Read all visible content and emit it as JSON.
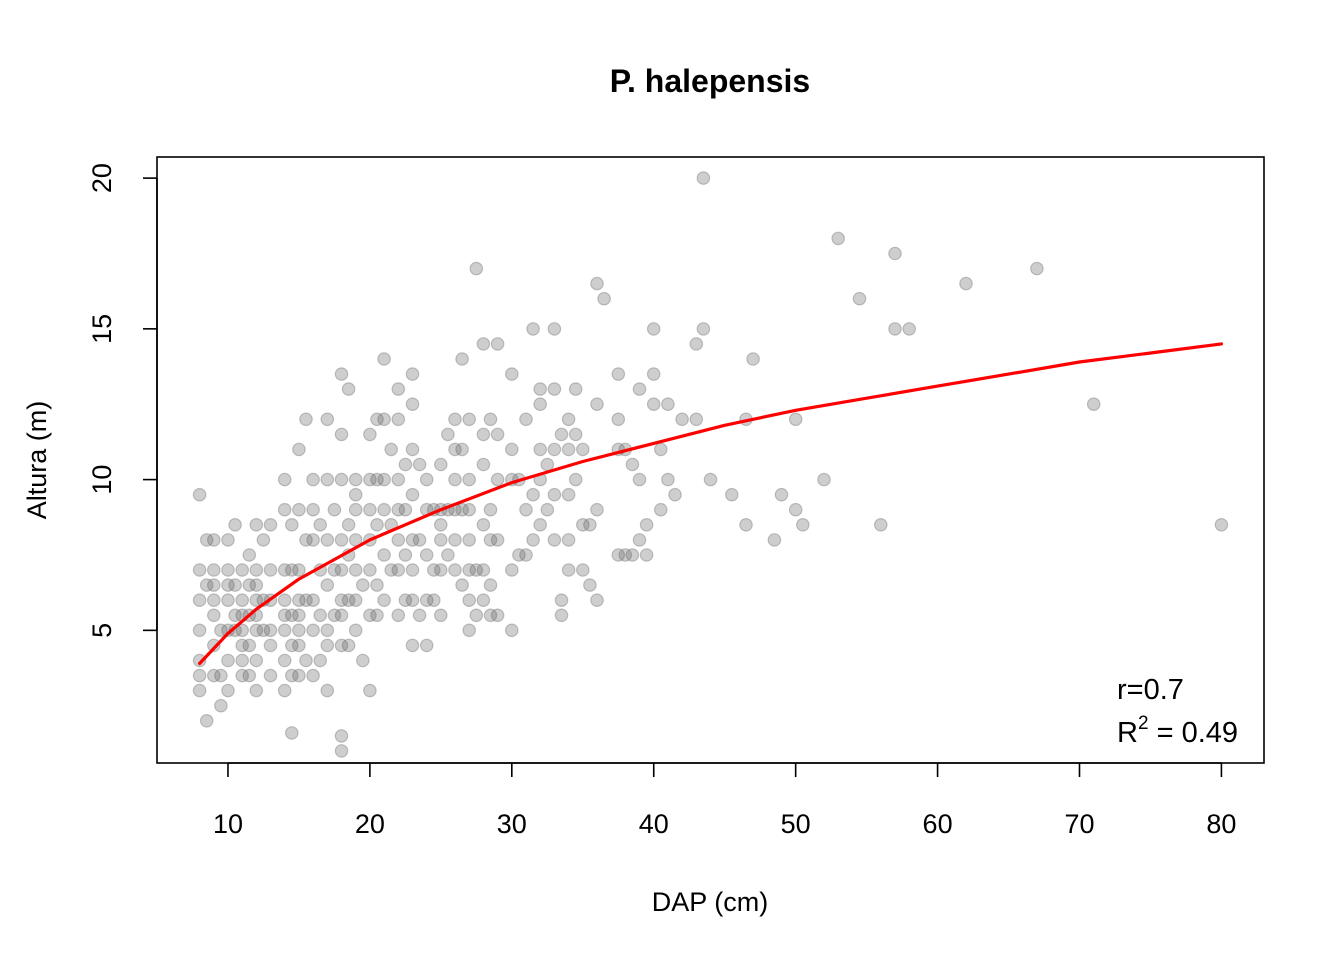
{
  "chart_data": {
    "type": "scatter",
    "title": "P. halepensis",
    "xlabel": "DAP (cm)",
    "ylabel": "Altura (m)",
    "xlim": [
      5,
      83
    ],
    "ylim": [
      0.6,
      20.7
    ],
    "xticks": [
      10,
      20,
      30,
      40,
      50,
      60,
      70,
      80
    ],
    "yticks": [
      5,
      10,
      15,
      20
    ],
    "grid": false,
    "legend": "none",
    "point_color": "#666666",
    "point_opacity": 0.32,
    "fit_color": "#ff0000",
    "annotations": {
      "r_text": "r=0.7",
      "r2_prefix": "R",
      "r2_sup": "2",
      "r2_value": " = 0.49"
    },
    "fit_curve": {
      "x": [
        8,
        10,
        12,
        15,
        20,
        25,
        30,
        35,
        40,
        45,
        50,
        55,
        60,
        65,
        70,
        75,
        80
      ],
      "y": [
        3.9,
        4.9,
        5.7,
        6.7,
        8.0,
        9.0,
        9.9,
        10.6,
        11.2,
        11.8,
        12.3,
        12.7,
        13.1,
        13.5,
        13.9,
        14.2,
        14.5
      ]
    },
    "points": {
      "x": [
        8,
        8,
        8,
        8,
        8,
        8,
        8,
        8.5,
        8.5,
        8.5,
        9,
        9,
        9,
        9,
        9,
        9,
        9,
        9.5,
        9.5,
        9.5,
        10,
        10,
        10,
        10,
        10,
        10,
        10,
        10.5,
        10.5,
        10.5,
        10.5,
        11,
        11,
        11,
        11,
        11,
        11,
        11,
        11.5,
        11.5,
        11.5,
        11.5,
        11.5,
        12,
        12,
        12,
        12,
        12,
        12,
        12,
        12,
        12.5,
        12.5,
        12.5,
        13,
        13,
        13,
        13,
        13,
        13,
        14,
        14,
        14,
        14,
        14,
        14,
        14,
        14,
        14.5,
        14.5,
        14.5,
        14.5,
        14.5,
        14.5,
        15,
        15,
        15,
        15,
        15,
        15,
        15,
        15,
        15.5,
        15.5,
        15.5,
        15.5,
        16,
        16,
        16,
        16,
        16,
        16,
        16.5,
        16.5,
        16.5,
        16.5,
        17,
        17,
        17,
        17,
        17,
        17,
        17,
        17.5,
        17.5,
        17.5,
        18,
        18,
        18,
        18,
        18,
        18,
        18,
        18,
        18,
        18,
        18.5,
        18.5,
        18.5,
        18.5,
        18.5,
        19,
        19,
        19,
        19,
        19,
        19,
        19,
        19.5,
        19.5,
        20,
        20,
        20,
        20,
        20,
        20,
        20,
        20.5,
        20.5,
        20.5,
        20.5,
        20.5,
        21,
        21,
        21,
        21,
        21,
        21,
        21.5,
        21.5,
        21.5,
        22,
        22,
        22,
        22,
        22,
        22,
        22,
        22.5,
        22.5,
        22.5,
        22.5,
        23,
        23,
        23,
        23,
        23,
        23,
        23,
        23,
        23.5,
        23.5,
        23.5,
        24,
        24,
        24,
        24,
        24,
        24.5,
        24.5,
        24.5,
        25,
        25,
        25,
        25,
        25,
        25,
        25.5,
        25.5,
        25.5,
        26,
        26,
        26,
        26,
        26,
        26,
        26.5,
        26.5,
        26.5,
        26.5,
        27,
        27,
        27,
        27,
        27,
        27,
        27,
        27.5,
        27.5,
        27.5,
        28,
        28,
        28,
        28,
        28,
        28,
        28.5,
        28.5,
        28.5,
        28.5,
        28.5,
        29,
        29,
        29,
        29,
        29,
        30,
        30,
        30,
        30,
        30,
        30.5,
        30.5,
        31,
        31,
        31,
        31.5,
        31.5,
        31.5,
        32,
        32,
        32,
        32,
        32,
        32.5,
        32.5,
        33,
        33,
        33,
        33,
        33,
        33.5,
        33.5,
        33.5,
        34,
        34,
        34,
        34,
        34,
        34.5,
        34.5,
        34.5,
        35,
        35,
        35,
        35.5,
        35.5,
        36,
        36,
        36,
        36,
        36.5,
        37.5,
        37.5,
        37.5,
        37.5,
        38,
        38,
        38.5,
        38.5,
        39,
        39,
        39,
        39.5,
        39.5,
        40,
        40,
        40,
        40.5,
        40.5,
        41,
        41,
        41.5,
        42,
        43,
        43,
        43.5,
        43.5,
        44,
        45.5,
        46.5,
        46.5,
        47,
        48.5,
        49,
        50,
        50,
        50.5,
        52,
        53,
        54.5,
        56,
        57,
        57,
        58,
        62,
        67,
        71,
        80
      ],
      "y": [
        3,
        3.5,
        4,
        5,
        6,
        7,
        9.5,
        2,
        6.5,
        8,
        3.5,
        4.5,
        5.5,
        6,
        6.5,
        7,
        8,
        2.5,
        3.5,
        5,
        3,
        4,
        5,
        6,
        6.5,
        7,
        8,
        5,
        5.5,
        6.5,
        8.5,
        3.5,
        4,
        4.5,
        5,
        5.5,
        6,
        7,
        3.5,
        4.5,
        5.5,
        6.5,
        7.5,
        3,
        4,
        5,
        5.5,
        6,
        6.5,
        7,
        8.5,
        5,
        6,
        8,
        3.5,
        4.5,
        5,
        6,
        7,
        8.5,
        3,
        4,
        5,
        5.5,
        6,
        7,
        9,
        10,
        1.6,
        3.5,
        4.5,
        5.5,
        7,
        8.5,
        3.5,
        4.5,
        5,
        5.5,
        6,
        7,
        9,
        11,
        4,
        6,
        8,
        12,
        3.5,
        5,
        6,
        8,
        9,
        10,
        4,
        5.5,
        7,
        8.5,
        3,
        4.5,
        5,
        6.5,
        8,
        10,
        12,
        5.5,
        7,
        9,
        1,
        1.5,
        4.5,
        5.5,
        6,
        7,
        8,
        10,
        11.5,
        13.5,
        4.5,
        6,
        7.5,
        8.5,
        13,
        5,
        6,
        7,
        8,
        9,
        9.5,
        10,
        4,
        6.5,
        3,
        5.5,
        7,
        8,
        9,
        10,
        11.5,
        5.5,
        6.5,
        8.5,
        10,
        12,
        6,
        7.5,
        9,
        10,
        12,
        14,
        7,
        8.5,
        11,
        5.5,
        7,
        8,
        9,
        10,
        12,
        13,
        6,
        7.5,
        9,
        10.5,
        4.5,
        6,
        7,
        8,
        9.5,
        11,
        12.5,
        13.5,
        5.5,
        8,
        10.5,
        4.5,
        6,
        7.5,
        9,
        10,
        6,
        7,
        9,
        5.5,
        7,
        8,
        8.5,
        9,
        10.5,
        7.5,
        9,
        11.5,
        7,
        8,
        9,
        10,
        11,
        12,
        6.5,
        9,
        11,
        14,
        5,
        6,
        7,
        8,
        9,
        10,
        12,
        5.5,
        7,
        17,
        6,
        7,
        8.5,
        10.5,
        11.5,
        14.5,
        5.5,
        6.5,
        8,
        9,
        12,
        5.5,
        8,
        10,
        11.5,
        14.5,
        5,
        7,
        10,
        11,
        13.5,
        7.5,
        10,
        7.5,
        9,
        12,
        8,
        9.5,
        15,
        8.5,
        10,
        11,
        12.5,
        13,
        9,
        10.5,
        8,
        9.5,
        11,
        13,
        15,
        5.5,
        6,
        11.5,
        7,
        8,
        9.5,
        11,
        12,
        10,
        11.5,
        13,
        7,
        8.5,
        11,
        6.5,
        8.5,
        6,
        9,
        12.5,
        16.5,
        16,
        7.5,
        12,
        13.5,
        11,
        7.5,
        11,
        7.5,
        10.5,
        8,
        10,
        13,
        7.5,
        8.5,
        12.5,
        13.5,
        15,
        9,
        11,
        10,
        12.5,
        9.5,
        12,
        14.5,
        12,
        15,
        20,
        10,
        9.5,
        8.5,
        12,
        14,
        8,
        9.5,
        9,
        12,
        8.5,
        10,
        18,
        16,
        8.5,
        15,
        17.5,
        15,
        16.5,
        17,
        12.5,
        8.5
      ]
    }
  }
}
